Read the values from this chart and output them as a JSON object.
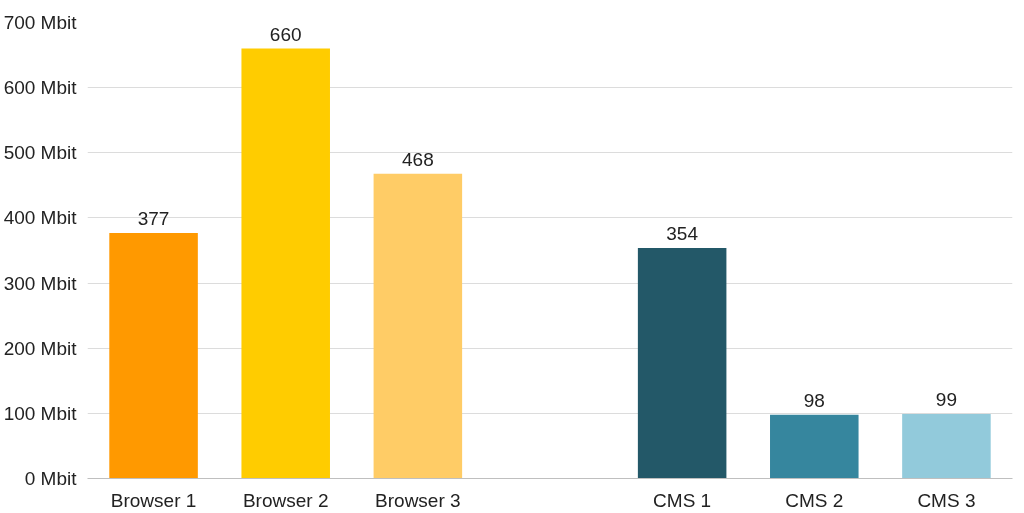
{
  "chart_data": {
    "type": "bar",
    "categories": [
      "Browser 1",
      "Browser 2",
      "Browser 3",
      null,
      "CMS 1",
      "CMS 2",
      "CMS 3"
    ],
    "values": [
      377,
      660,
      468,
      null,
      354,
      98,
      99
    ],
    "colors": [
      "#ff9900",
      "#ffcc00",
      "#ffcc66",
      "#ffffff",
      "#235868",
      "#36869e",
      "#92cadb"
    ],
    "ylim": [
      0,
      700
    ],
    "yticks": [
      {
        "value": 0,
        "label": "0 Mbit"
      },
      {
        "value": 100,
        "label": "100 Mbit"
      },
      {
        "value": 200,
        "label": "200 Mbit"
      },
      {
        "value": 300,
        "label": "300 Mbit"
      },
      {
        "value": 400,
        "label": "400 Mbit"
      },
      {
        "value": 500,
        "label": "500 Mbit"
      },
      {
        "value": 600,
        "label": "600 Mbit"
      },
      {
        "value": 700,
        "label": "700 Mbit"
      }
    ],
    "grid": "y",
    "data_labels": true
  }
}
